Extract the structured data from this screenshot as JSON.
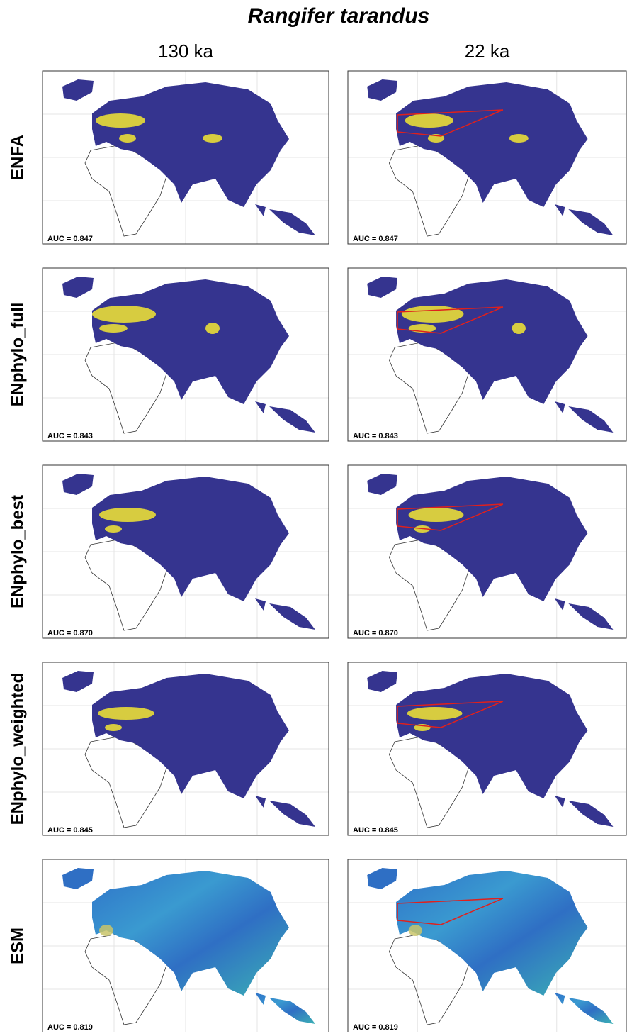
{
  "title": "Rangifer tarandus",
  "columns": [
    "130 ka",
    "22 ka"
  ],
  "rows": [
    {
      "label": "ENFA",
      "auc": [
        "AUC = 0.847",
        "AUC = 0.847"
      ]
    },
    {
      "label": "ENphylo_full",
      "auc": [
        "AUC = 0.843",
        "AUC = 0.843"
      ]
    },
    {
      "label": "ENphylo_best",
      "auc": [
        "AUC = 0.870",
        "AUC = 0.870"
      ]
    },
    {
      "label": "ENphylo_weighted",
      "auc": [
        "AUC = 0.845",
        "AUC = 0.845"
      ]
    },
    {
      "label": "ESM",
      "auc": [
        "AUC = 0.819",
        "AUC = 0.819"
      ]
    }
  ]
}
